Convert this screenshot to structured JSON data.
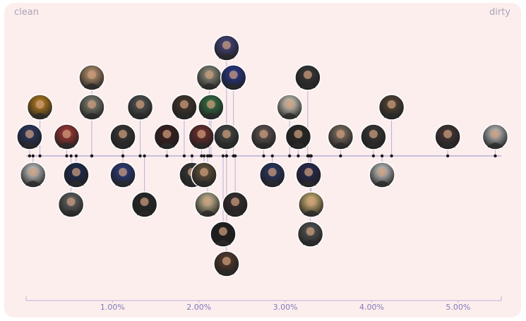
{
  "corner_labels": {
    "left": "clean",
    "right": "dirty"
  },
  "colors": {
    "axis": "#b7b0d6",
    "stem": "#b7b0d6",
    "dot": "#1b1b1b",
    "avatar_fill": "#1e1e1e",
    "avatar_ring": "#ffffff",
    "tick_text": "#7f7ab8"
  },
  "icons": {
    "artist_avatar": "rapper-portrait-icon"
  },
  "chart_data": {
    "type": "scatter",
    "title": "",
    "xlabel": "",
    "ylabel": "",
    "xlim": [
      0.0,
      5.5
    ],
    "x_ticks": [
      1.0,
      2.0,
      3.0,
      4.0,
      5.0
    ],
    "x_tick_labels": [
      "1.00%",
      "2.00%",
      "3.00%",
      "4.00%",
      "5.00%"
    ],
    "grid": false,
    "legend": "none",
    "points": [
      {
        "x": 0.04,
        "side": "up",
        "level": 1,
        "tone": "#2d3b6a"
      },
      {
        "x": 0.16,
        "side": "up",
        "level": 2,
        "tone": "#c98a1f"
      },
      {
        "x": 0.08,
        "side": "down",
        "level": 1,
        "tone": "#dcdcdc"
      },
      {
        "x": 0.47,
        "side": "up",
        "level": 1,
        "tone": "#b23a3a"
      },
      {
        "x": 0.58,
        "side": "down",
        "level": 1,
        "tone": "#1e2c55"
      },
      {
        "x": 0.52,
        "side": "down",
        "level": 2,
        "tone": "#6c6c6c"
      },
      {
        "x": 0.76,
        "side": "up",
        "level": 2,
        "tone": "#8a8a7a"
      },
      {
        "x": 0.76,
        "side": "up",
        "level": 3,
        "tone": "#c9a079"
      },
      {
        "x": 1.12,
        "side": "up",
        "level": 1,
        "tone": "#3a3a3a"
      },
      {
        "x": 1.12,
        "side": "down",
        "level": 1,
        "tone": "#2e3f8a"
      },
      {
        "x": 1.32,
        "side": "up",
        "level": 2,
        "tone": "#5a5a5a"
      },
      {
        "x": 1.37,
        "side": "down",
        "level": 2,
        "tone": "#2a2a2a"
      },
      {
        "x": 1.63,
        "side": "up",
        "level": 1,
        "tone": "#402020"
      },
      {
        "x": 1.83,
        "side": "up",
        "level": 2,
        "tone": "#4a3a30"
      },
      {
        "x": 1.92,
        "side": "down",
        "level": 1,
        "tone": "#3a3a3a"
      },
      {
        "x": 2.03,
        "side": "up",
        "level": 1,
        "tone": "#7a3030"
      },
      {
        "x": 2.06,
        "side": "down",
        "level": 1,
        "tone": "#6a5a40"
      },
      {
        "x": 2.1,
        "side": "down",
        "level": 2,
        "tone": "#d8c8a0"
      },
      {
        "x": 2.12,
        "side": "up",
        "level": 3,
        "tone": "#9a9a8a"
      },
      {
        "x": 2.14,
        "side": "up",
        "level": 2,
        "tone": "#3a7a4a"
      },
      {
        "x": 2.32,
        "side": "up",
        "level": 1,
        "tone": "#4a4a4a"
      },
      {
        "x": 2.32,
        "side": "up",
        "level": 4,
        "tone": "#4a4a8a"
      },
      {
        "x": 2.28,
        "side": "down",
        "level": 3,
        "tone": "#202020"
      },
      {
        "x": 2.32,
        "side": "down",
        "level": 4,
        "tone": "#5a4030"
      },
      {
        "x": 2.4,
        "side": "up",
        "level": 3,
        "tone": "#2a3a9a"
      },
      {
        "x": 2.42,
        "side": "down",
        "level": 2,
        "tone": "#3a3030"
      },
      {
        "x": 2.75,
        "side": "up",
        "level": 1,
        "tone": "#6a5a5a"
      },
      {
        "x": 2.85,
        "side": "down",
        "level": 1,
        "tone": "#2a3a6a"
      },
      {
        "x": 3.05,
        "side": "up",
        "level": 2,
        "tone": "#e8e0d0"
      },
      {
        "x": 3.15,
        "side": "up",
        "level": 1,
        "tone": "#2a2a2a"
      },
      {
        "x": 3.26,
        "side": "up",
        "level": 3,
        "tone": "#3a3a3a"
      },
      {
        "x": 3.27,
        "side": "down",
        "level": 1,
        "tone": "#2a2a5a"
      },
      {
        "x": 3.3,
        "side": "down",
        "level": 2,
        "tone": "#e8c880"
      },
      {
        "x": 3.29,
        "side": "down",
        "level": 3,
        "tone": "#5a5a5a"
      },
      {
        "x": 3.64,
        "side": "up",
        "level": 1,
        "tone": "#8a7a6a"
      },
      {
        "x": 4.02,
        "side": "up",
        "level": 1,
        "tone": "#3a3a3a"
      },
      {
        "x": 4.12,
        "side": "down",
        "level": 1,
        "tone": "#d8d8d8"
      },
      {
        "x": 4.23,
        "side": "up",
        "level": 2,
        "tone": "#5a4a3a"
      },
      {
        "x": 4.88,
        "side": "up",
        "level": 1,
        "tone": "#4a3a3a"
      },
      {
        "x": 5.43,
        "side": "up",
        "level": 1,
        "tone": "#d0d0d0"
      }
    ]
  }
}
